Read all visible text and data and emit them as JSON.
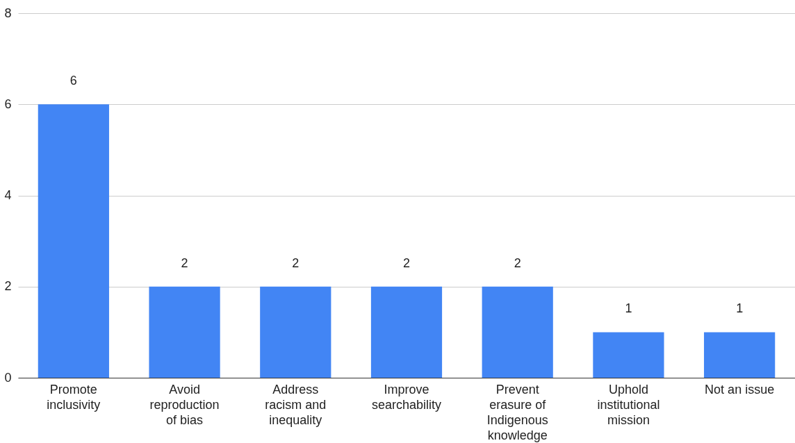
{
  "chart_data": {
    "type": "bar",
    "categories": [
      "Promote inclusivity",
      "Avoid reproduction of bias",
      "Address racism and inequality",
      "Improve searchability",
      "Prevent erasure of Indigenous knowledge",
      "Uphold institutional mission",
      "Not an issue"
    ],
    "values": [
      6,
      2,
      2,
      2,
      2,
      1,
      1
    ],
    "color": "#4285f4",
    "ylim": [
      0,
      8
    ],
    "yticks": [
      0,
      2,
      4,
      6,
      8
    ],
    "grid": "y",
    "data_labels": true
  }
}
